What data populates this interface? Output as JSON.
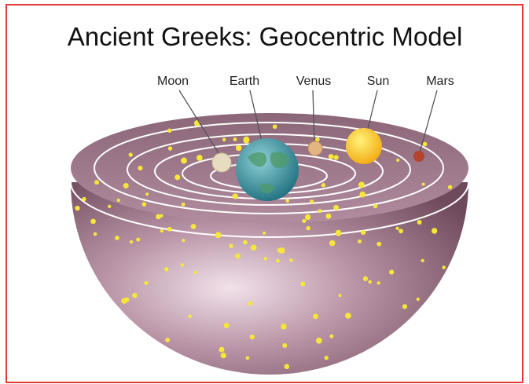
{
  "title": "Ancient Greeks: Geocentric Model",
  "bodies": [
    {
      "label": "Moon"
    },
    {
      "label": "Earth"
    },
    {
      "label": "Venus"
    },
    {
      "label": "Sun"
    },
    {
      "label": "Mars"
    }
  ]
}
